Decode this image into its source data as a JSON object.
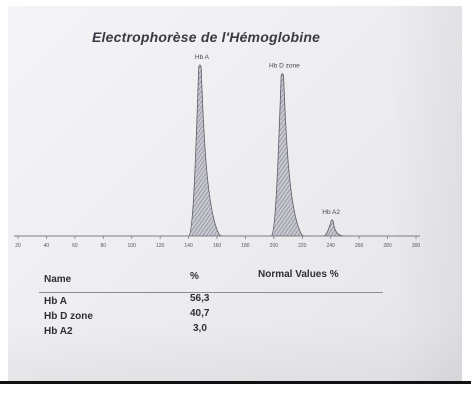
{
  "chart_data": {
    "type": "area",
    "title": "Electrophorèse de l'Hémoglobine",
    "x_ticks": [
      "20",
      "40",
      "60",
      "80",
      "100",
      "120",
      "140",
      "160",
      "180",
      "200",
      "220",
      "240",
      "260",
      "280",
      "300"
    ],
    "xlim": [
      20,
      300
    ],
    "grid": false,
    "series": [
      {
        "name": "Hb A",
        "peak_x": 148,
        "relative_height": 1.0
      },
      {
        "name": "Hb D zone",
        "peak_x": 206,
        "relative_height": 0.95
      },
      {
        "name": "Hb A2",
        "peak_x": 241,
        "relative_height": 0.1
      }
    ],
    "peak_fill": "#9a9aa4",
    "peak_stroke": "#5c5c68"
  },
  "table": {
    "headers": {
      "name": "Name",
      "percent": "%",
      "normal": "Normal Values %"
    },
    "rows": [
      {
        "name": "Hb A",
        "percent": "56,3"
      },
      {
        "name": "Hb D zone",
        "percent": "40,7"
      },
      {
        "name": "Hb A2",
        "percent": "3,0"
      }
    ]
  }
}
